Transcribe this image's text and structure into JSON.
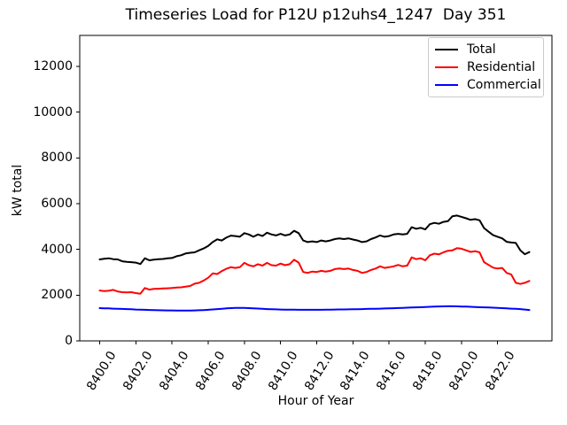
{
  "background_color": "#ffffff",
  "chart_data": {
    "type": "line",
    "title": "Timeseries Load for P12U p12uhs4_1247  Day 351",
    "xlabel": "Hour of Year",
    "ylabel": "kW total",
    "grid": false,
    "xlim": [
      8398.9,
      8425.0
    ],
    "ylim": [
      0,
      13350
    ],
    "x_ticks": [
      8400,
      8402,
      8404,
      8406,
      8408,
      8410,
      8412,
      8414,
      8416,
      8418,
      8420,
      8422
    ],
    "x_tick_labels": [
      "8400.0",
      "8402.0",
      "8404.0",
      "8406.0",
      "8408.0",
      "8410.0",
      "8412.0",
      "8414.0",
      "8416.0",
      "8418.0",
      "8420.0",
      "8422.0"
    ],
    "y_ticks": [
      0,
      2000,
      4000,
      6000,
      8000,
      10000,
      12000
    ],
    "y_tick_labels": [
      "0",
      "2000",
      "4000",
      "6000",
      "8000",
      "10000",
      "12000"
    ],
    "x_start": 8400.0,
    "x_step": 0.25,
    "legend": {
      "position": "upper right"
    },
    "series": [
      {
        "name": "Total",
        "color": "#000000",
        "values": [
          3560,
          3590,
          3610,
          3570,
          3560,
          3480,
          3450,
          3440,
          3420,
          3360,
          3610,
          3520,
          3550,
          3570,
          3580,
          3610,
          3620,
          3700,
          3740,
          3820,
          3850,
          3870,
          3960,
          4040,
          4150,
          4320,
          4440,
          4390,
          4510,
          4600,
          4580,
          4550,
          4710,
          4650,
          4550,
          4650,
          4580,
          4730,
          4650,
          4610,
          4680,
          4610,
          4650,
          4810,
          4710,
          4390,
          4320,
          4350,
          4320,
          4390,
          4350,
          4390,
          4450,
          4480,
          4450,
          4480,
          4430,
          4390,
          4320,
          4350,
          4450,
          4520,
          4610,
          4550,
          4580,
          4650,
          4680,
          4650,
          4680,
          4970,
          4900,
          4940,
          4870,
          5100,
          5160,
          5120,
          5200,
          5230,
          5450,
          5480,
          5420,
          5360,
          5290,
          5320,
          5270,
          4930,
          4770,
          4620,
          4550,
          4480,
          4330,
          4300,
          4280,
          3960,
          3790,
          3880
        ]
      },
      {
        "name": "Residential",
        "color": "#ff0000",
        "values": [
          2200,
          2180,
          2190,
          2230,
          2160,
          2130,
          2120,
          2130,
          2090,
          2060,
          2310,
          2240,
          2270,
          2280,
          2290,
          2300,
          2310,
          2330,
          2340,
          2370,
          2400,
          2500,
          2540,
          2640,
          2760,
          2950,
          2920,
          3050,
          3150,
          3220,
          3190,
          3220,
          3410,
          3310,
          3260,
          3350,
          3290,
          3410,
          3310,
          3290,
          3380,
          3310,
          3350,
          3550,
          3420,
          3010,
          2970,
          3030,
          3010,
          3060,
          3030,
          3060,
          3140,
          3160,
          3140,
          3160,
          3100,
          3060,
          2970,
          3010,
          3100,
          3160,
          3260,
          3190,
          3220,
          3260,
          3320,
          3260,
          3290,
          3650,
          3570,
          3610,
          3520,
          3740,
          3810,
          3780,
          3870,
          3940,
          3960,
          4050,
          4030,
          3960,
          3890,
          3920,
          3870,
          3440,
          3320,
          3200,
          3160,
          3190,
          2970,
          2900,
          2540,
          2490,
          2540,
          2620
        ]
      },
      {
        "name": "Commercial",
        "color": "#0000ff",
        "values": [
          1430,
          1425,
          1420,
          1410,
          1400,
          1395,
          1390,
          1380,
          1370,
          1365,
          1360,
          1350,
          1345,
          1340,
          1335,
          1330,
          1330,
          1328,
          1326,
          1326,
          1328,
          1332,
          1338,
          1348,
          1360,
          1375,
          1390,
          1405,
          1420,
          1430,
          1440,
          1442,
          1440,
          1432,
          1424,
          1412,
          1400,
          1390,
          1382,
          1376,
          1370,
          1366,
          1363,
          1361,
          1360,
          1359,
          1358,
          1358,
          1358,
          1360,
          1362,
          1366,
          1370,
          1372,
          1375,
          1378,
          1382,
          1386,
          1390,
          1395,
          1400,
          1405,
          1410,
          1415,
          1420,
          1428,
          1435,
          1442,
          1450,
          1458,
          1465,
          1472,
          1480,
          1490,
          1500,
          1505,
          1510,
          1512,
          1512,
          1508,
          1500,
          1496,
          1490,
          1480,
          1470,
          1465,
          1460,
          1450,
          1440,
          1430,
          1420,
          1410,
          1400,
          1390,
          1370,
          1350
        ]
      }
    ]
  }
}
